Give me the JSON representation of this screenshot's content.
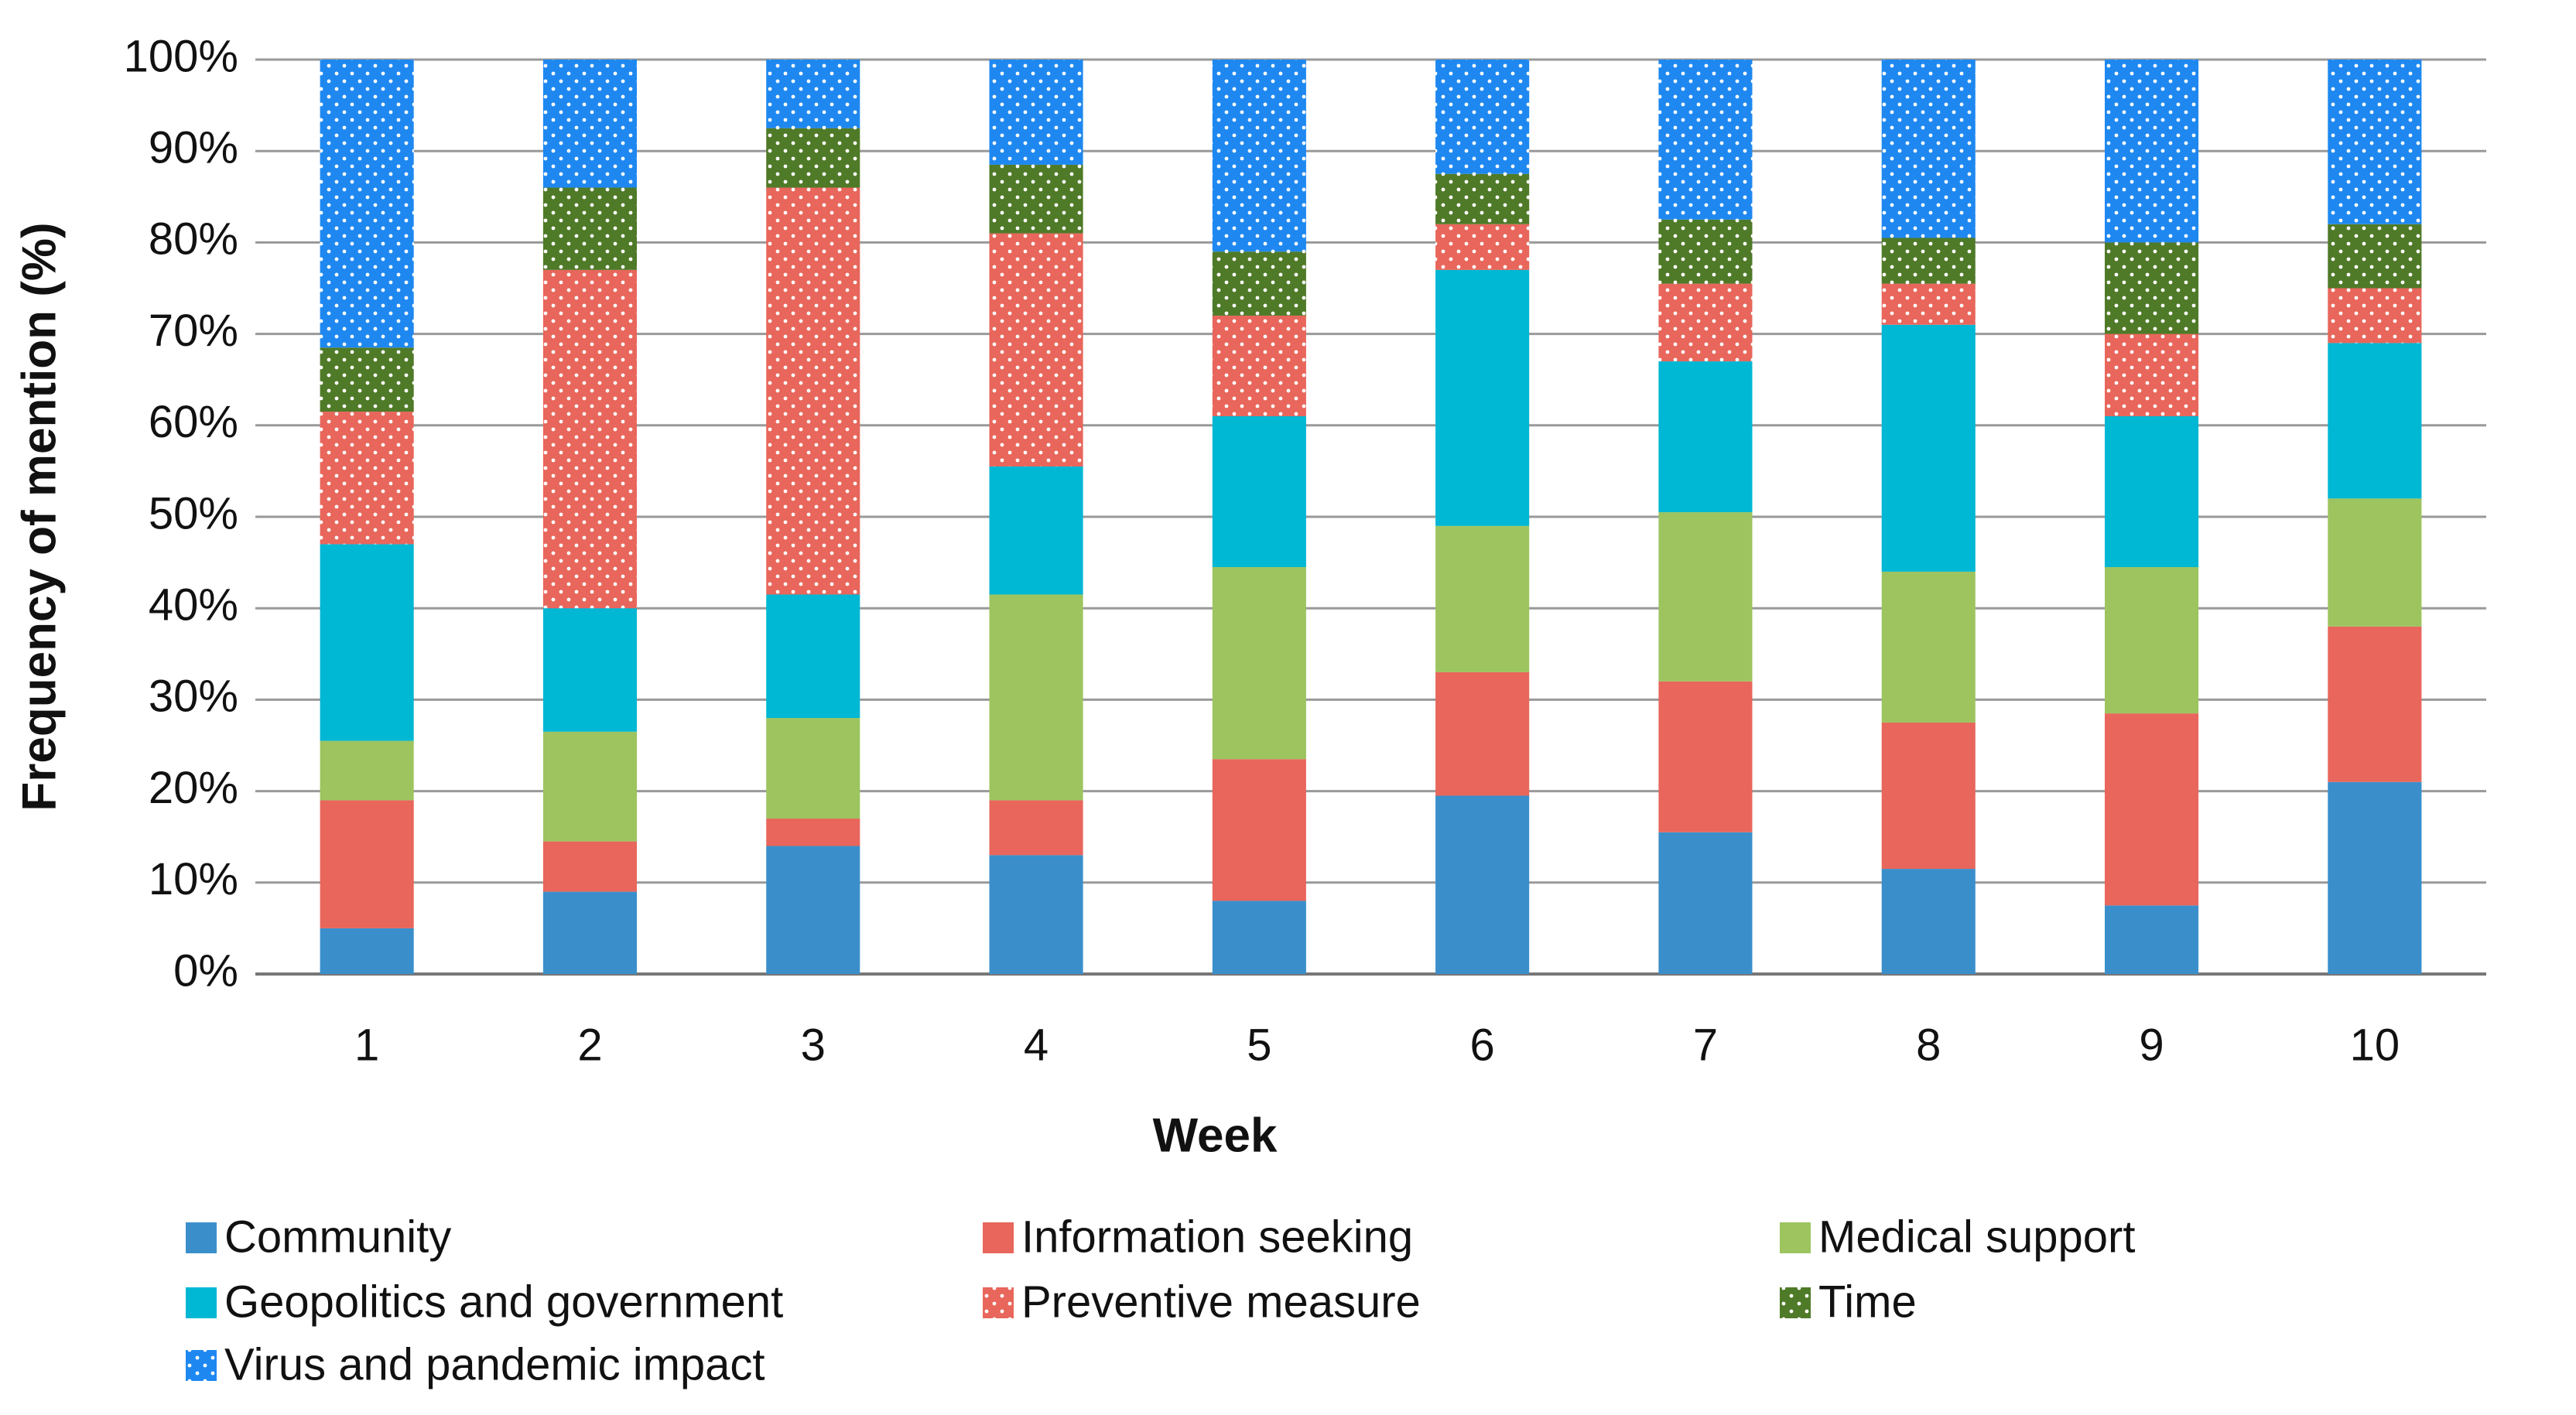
{
  "chart_data": {
    "type": "stacked_bar",
    "x_label": "Week",
    "y_label": "Frequency of mention (%)",
    "categories": [
      "1",
      "2",
      "3",
      "4",
      "5",
      "6",
      "7",
      "8",
      "9",
      "10"
    ],
    "series": [
      {
        "name": "Community",
        "color": "#3a8fcb",
        "pattern": "solid",
        "values": [
          5,
          9,
          14,
          13,
          8,
          19.5,
          15.5,
          11.5,
          7.5,
          21
        ]
      },
      {
        "name": "Information seeking",
        "color": "#e8665b",
        "pattern": "solid",
        "values": [
          14,
          5.5,
          3,
          6,
          15.5,
          13.5,
          16.5,
          16,
          21,
          17
        ]
      },
      {
        "name": "Medical support",
        "color": "#9dc45f",
        "pattern": "solid",
        "values": [
          6.5,
          12,
          11,
          22.5,
          21,
          16,
          18.5,
          16.5,
          16,
          14
        ]
      },
      {
        "name": "Geopolitics and government",
        "color": "#00b7d4",
        "pattern": "solid",
        "values": [
          21.5,
          13.5,
          13.5,
          14,
          16.5,
          28,
          16.5,
          27,
          16.5,
          17
        ]
      },
      {
        "name": "Preventive measure",
        "color": "#e8665b",
        "pattern": "dots",
        "values": [
          14.5,
          37,
          44.5,
          25.5,
          11,
          5,
          8.5,
          4.5,
          9,
          6
        ]
      },
      {
        "name": "Time",
        "color": "#4f7a28",
        "pattern": "dots",
        "values": [
          7,
          9,
          6.5,
          7.5,
          7,
          5.5,
          7,
          5,
          10,
          7
        ]
      },
      {
        "name": "Virus and pandemic impact",
        "color": "#1e88f0",
        "pattern": "dots",
        "values": [
          31.5,
          14,
          7.5,
          11.5,
          21,
          12.5,
          17.5,
          19.5,
          20,
          18
        ]
      }
    ],
    "ylim": [
      0,
      100
    ],
    "yticks": [
      {
        "value": 0,
        "label": "0%"
      },
      {
        "value": 10,
        "label": "10%"
      },
      {
        "value": 20,
        "label": "20%"
      },
      {
        "value": 30,
        "label": "30%"
      },
      {
        "value": 40,
        "label": "40%"
      },
      {
        "value": 50,
        "label": "50%"
      },
      {
        "value": 60,
        "label": "60%"
      },
      {
        "value": 70,
        "label": "70%"
      },
      {
        "value": 80,
        "label": "80%"
      },
      {
        "value": 90,
        "label": "90%"
      },
      {
        "value": 100,
        "label": "100%"
      }
    ],
    "grid": true,
    "legend": "bottom"
  }
}
